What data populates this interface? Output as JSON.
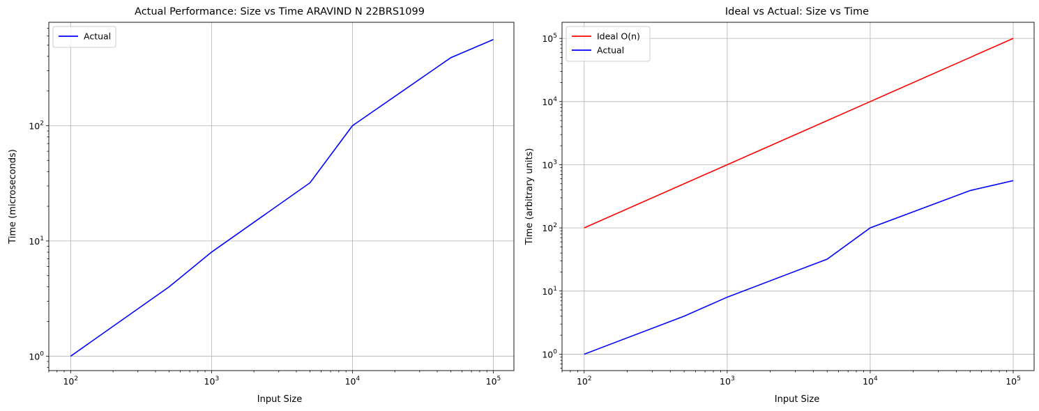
{
  "chart_data": [
    {
      "type": "line",
      "title": "Actual Performance: Size vs Time ARAVIND N 22BRS1099",
      "xlabel": "Input Size",
      "ylabel": "Time (microseconds)",
      "xscale": "log",
      "yscale": "log",
      "xlim": [
        70,
        140000
      ],
      "ylim": [
        0.75,
        790
      ],
      "xticks": [
        100,
        1000,
        10000,
        100000
      ],
      "xtick_labels": [
        {
          "base": "10",
          "exp": "2"
        },
        {
          "base": "10",
          "exp": "3"
        },
        {
          "base": "10",
          "exp": "4"
        },
        {
          "base": "10",
          "exp": "5"
        }
      ],
      "yticks": [
        1,
        10,
        100
      ],
      "ytick_labels": [
        {
          "base": "10",
          "exp": "0"
        },
        {
          "base": "10",
          "exp": "1"
        },
        {
          "base": "10",
          "exp": "2"
        }
      ],
      "grid": true,
      "legend": "upper-left",
      "series": [
        {
          "name": "Actual",
          "color": "#0000ff",
          "x": [
            100,
            500,
            1000,
            5000,
            10000,
            50000,
            100000
          ],
          "y": [
            1,
            4,
            8,
            32,
            100,
            390,
            560
          ]
        }
      ]
    },
    {
      "type": "line",
      "title": "Ideal vs Actual: Size vs Time",
      "xlabel": "Input Size",
      "ylabel": "Time (arbitrary units)",
      "xscale": "log",
      "yscale": "log",
      "xlim": [
        70,
        140000
      ],
      "ylim": [
        0.55,
        180000
      ],
      "xticks": [
        100,
        1000,
        10000,
        100000
      ],
      "xtick_labels": [
        {
          "base": "10",
          "exp": "2"
        },
        {
          "base": "10",
          "exp": "3"
        },
        {
          "base": "10",
          "exp": "4"
        },
        {
          "base": "10",
          "exp": "5"
        }
      ],
      "yticks": [
        1,
        10,
        100,
        1000,
        10000,
        100000
      ],
      "ytick_labels": [
        {
          "base": "10",
          "exp": "0"
        },
        {
          "base": "10",
          "exp": "1"
        },
        {
          "base": "10",
          "exp": "2"
        },
        {
          "base": "10",
          "exp": "3"
        },
        {
          "base": "10",
          "exp": "4"
        },
        {
          "base": "10",
          "exp": "5"
        }
      ],
      "grid": true,
      "legend": "upper-left",
      "series": [
        {
          "name": "Ideal O(n)",
          "color": "#ff0000",
          "x": [
            100,
            500,
            1000,
            5000,
            10000,
            50000,
            100000
          ],
          "y": [
            100,
            500,
            1000,
            5000,
            10000,
            50000,
            100000
          ]
        },
        {
          "name": "Actual",
          "color": "#0000ff",
          "x": [
            100,
            500,
            1000,
            5000,
            10000,
            50000,
            100000
          ],
          "y": [
            1,
            4,
            8,
            32,
            100,
            390,
            560
          ]
        }
      ]
    }
  ]
}
